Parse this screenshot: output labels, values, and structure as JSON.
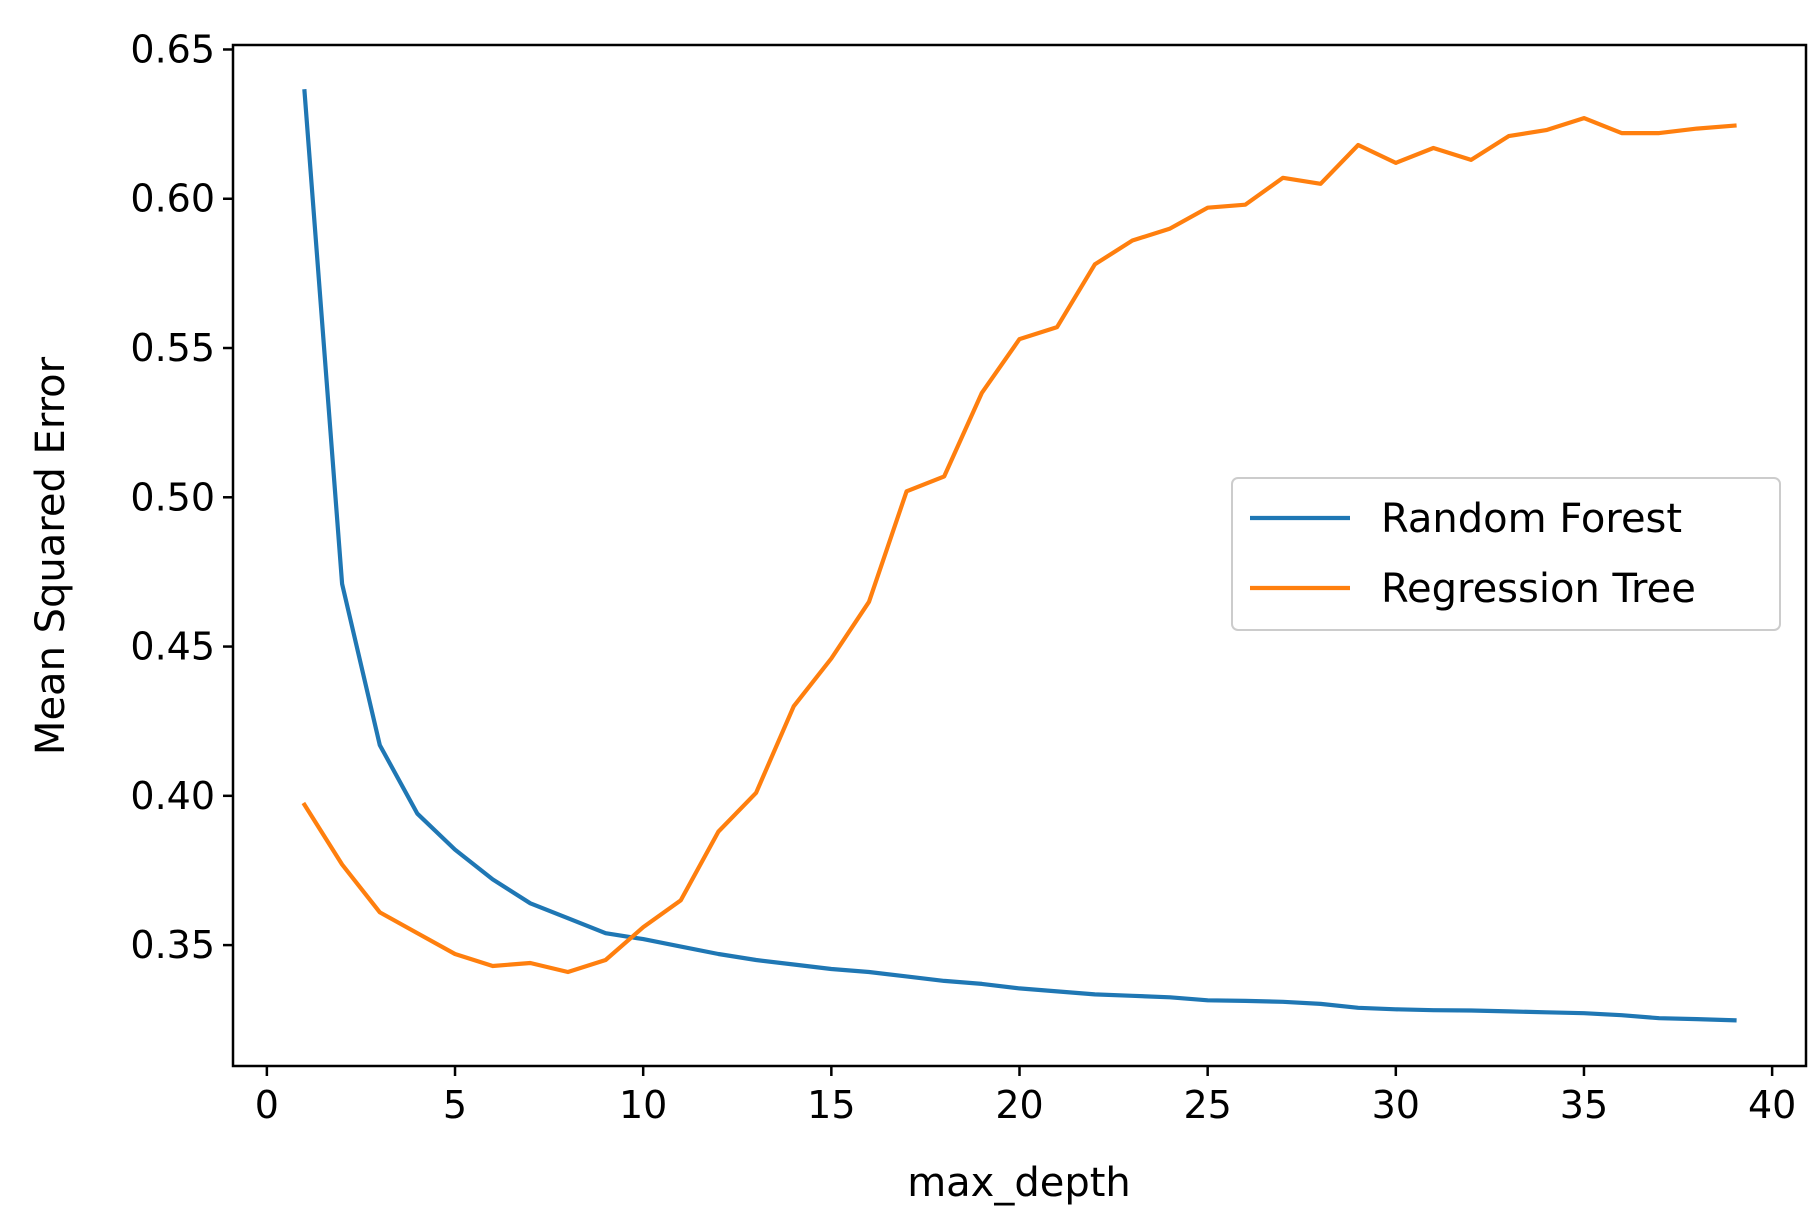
{
  "chart_data": {
    "type": "line",
    "title": "",
    "xlabel": "max_depth",
    "ylabel": "Mean Squared Error",
    "xlim": [
      -0.9,
      40.9
    ],
    "ylim": [
      0.3095,
      0.6515
    ],
    "xticks": [
      0,
      5,
      10,
      15,
      20,
      25,
      30,
      35,
      40
    ],
    "yticks": [
      0.35,
      0.4,
      0.45,
      0.5,
      0.55,
      0.6,
      0.65
    ],
    "xtick_labels": [
      "0",
      "5",
      "10",
      "15",
      "20",
      "25",
      "30",
      "35",
      "40"
    ],
    "ytick_labels": [
      "0.35",
      "0.40",
      "0.45",
      "0.50",
      "0.55",
      "0.60",
      "0.65"
    ],
    "grid": false,
    "legend_placement": "center-right",
    "x": [
      1,
      2,
      3,
      4,
      5,
      6,
      7,
      8,
      9,
      10,
      11,
      12,
      13,
      14,
      15,
      16,
      17,
      18,
      19,
      20,
      21,
      22,
      23,
      24,
      25,
      26,
      27,
      28,
      29,
      30,
      31,
      32,
      33,
      34,
      35,
      36,
      37,
      38,
      39
    ],
    "series": [
      {
        "name": "Random Forest",
        "color": "#1f77b4",
        "values": [
          0.636,
          0.471,
          0.417,
          0.394,
          0.382,
          0.372,
          0.364,
          0.359,
          0.354,
          0.352,
          0.3495,
          0.347,
          0.345,
          0.3435,
          0.342,
          0.341,
          0.3395,
          0.338,
          0.337,
          0.3355,
          0.3345,
          0.3335,
          0.333,
          0.3325,
          0.3315,
          0.3313,
          0.331,
          0.3303,
          0.329,
          0.3285,
          0.3282,
          0.3281,
          0.3278,
          0.3275,
          0.3272,
          0.3265,
          0.3255,
          0.3252,
          0.3248
        ]
      },
      {
        "name": "Regression Tree",
        "color": "#ff7f0e",
        "values": [
          0.397,
          0.377,
          0.361,
          0.354,
          0.347,
          0.343,
          0.344,
          0.341,
          0.345,
          0.356,
          0.365,
          0.388,
          0.401,
          0.43,
          0.446,
          0.465,
          0.502,
          0.507,
          0.535,
          0.553,
          0.557,
          0.578,
          0.586,
          0.59,
          0.597,
          0.598,
          0.607,
          0.605,
          0.618,
          0.612,
          0.617,
          0.613,
          0.621,
          0.623,
          0.627,
          0.622,
          0.622,
          0.6235,
          0.6245
        ]
      }
    ]
  }
}
